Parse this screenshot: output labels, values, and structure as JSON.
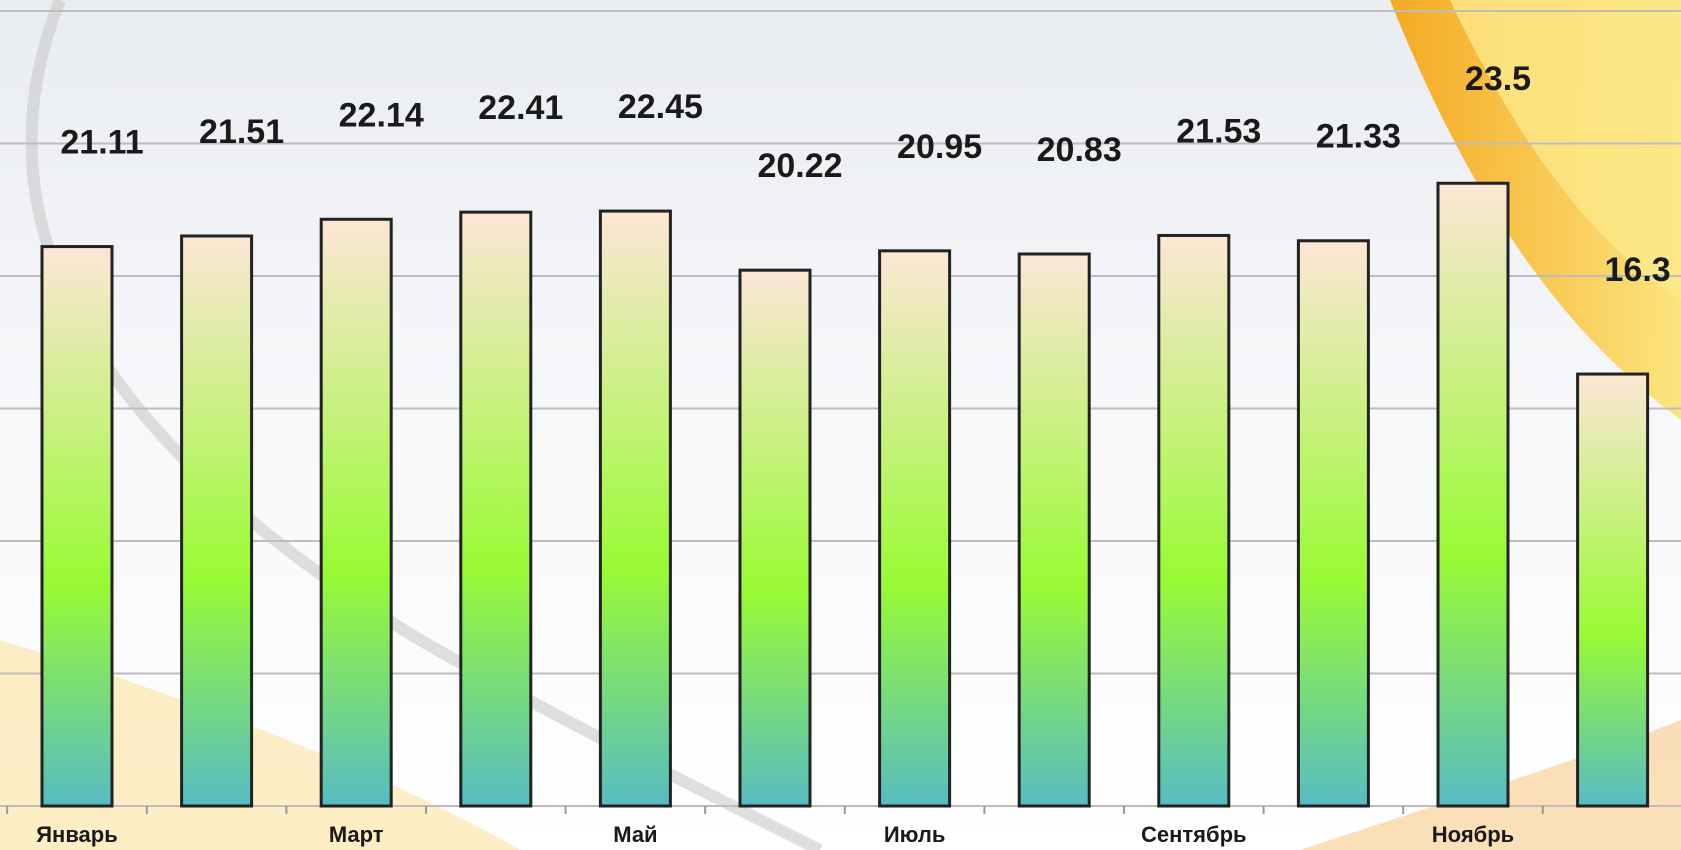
{
  "chart_data": {
    "type": "bar",
    "categories": [
      "Январь",
      null,
      "Март",
      null,
      "Май",
      null,
      "Июль",
      null,
      "Сентябрь",
      null,
      "Ноябрь",
      null
    ],
    "values": [
      21.11,
      21.51,
      22.14,
      22.41,
      22.45,
      20.22,
      20.95,
      20.83,
      21.53,
      21.33,
      23.5,
      16.3
    ],
    "ylim": [
      0,
      30
    ],
    "yticks": [
      0,
      5,
      10,
      15,
      20,
      25,
      30
    ],
    "grid": true
  }
}
